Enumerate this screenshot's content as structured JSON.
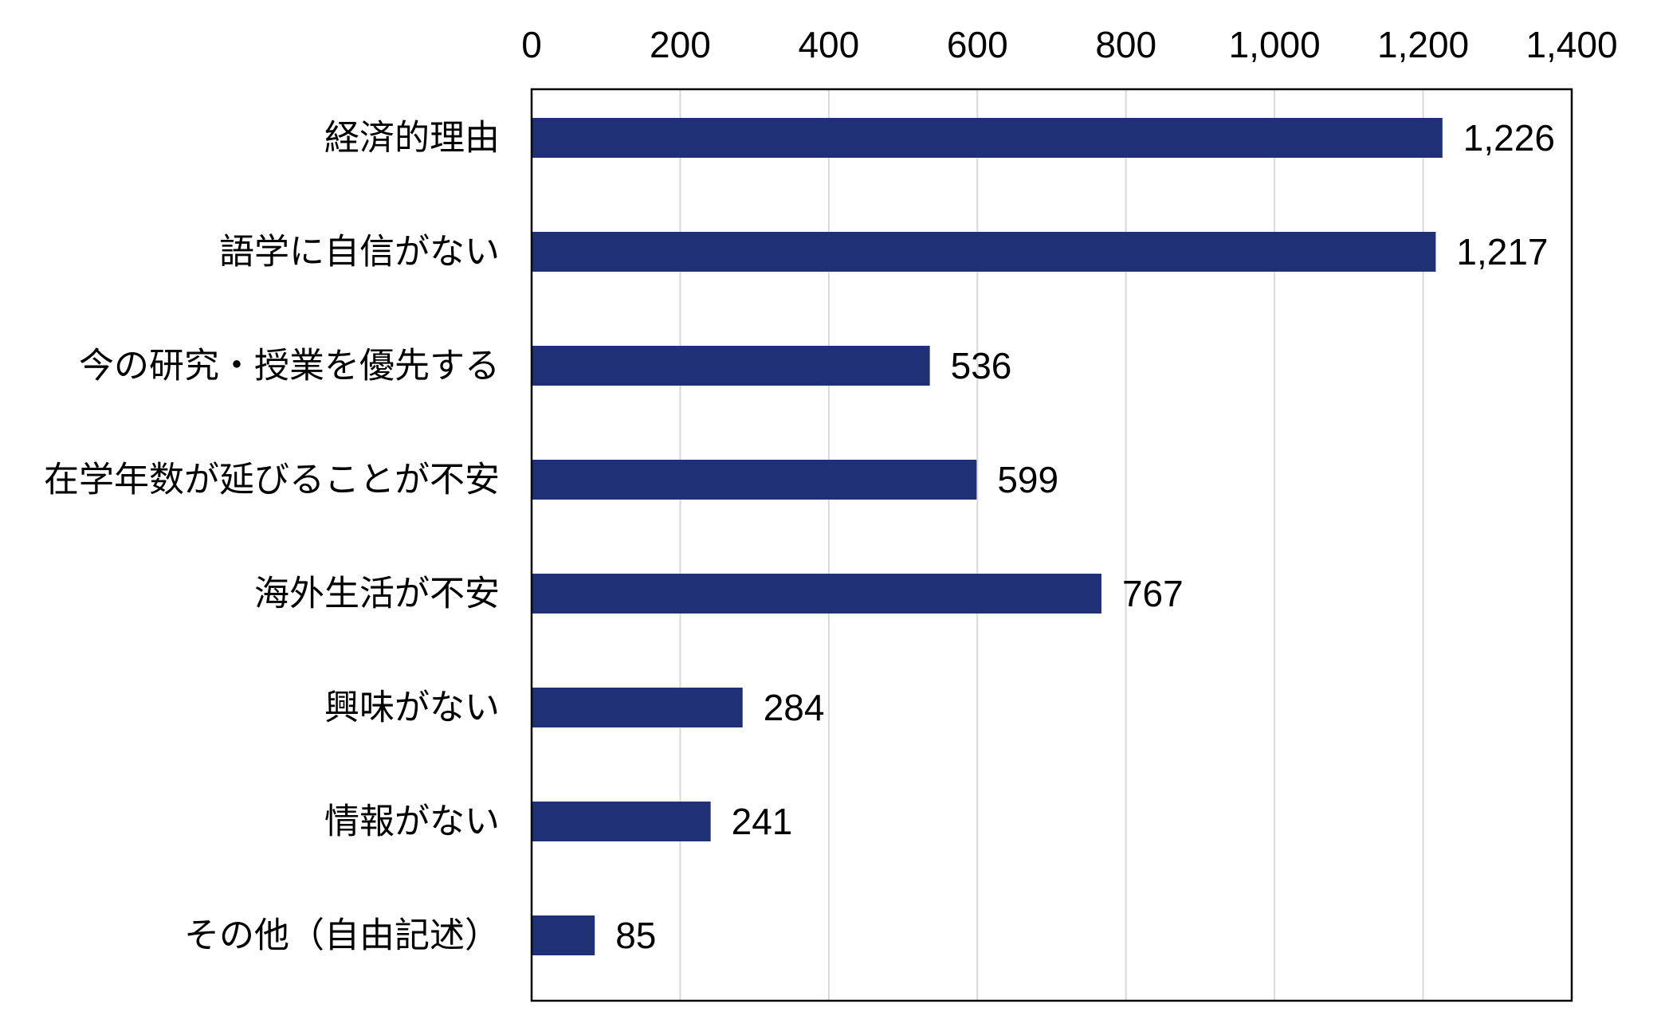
{
  "chart_data": {
    "type": "bar",
    "orientation": "horizontal",
    "categories": [
      "経済的理由",
      "語学に自信がない",
      "今の研究・授業を優先する",
      "在学年数が延びることが不安",
      "海外生活が不安",
      "興味がない",
      "情報がない",
      "その他（自由記述）"
    ],
    "values": [
      1226,
      1217,
      536,
      599,
      767,
      284,
      241,
      85
    ],
    "value_labels": [
      "1,226",
      "1,217",
      "536",
      "599",
      "767",
      "284",
      "241",
      "85"
    ],
    "xlim": [
      0,
      1400
    ],
    "x_ticks": [
      0,
      200,
      400,
      600,
      800,
      1000,
      1200,
      1400
    ],
    "x_tick_labels": [
      "0",
      "200",
      "400",
      "600",
      "800",
      "1,000",
      "1,200",
      "1,400"
    ],
    "x_axis_position": "top",
    "grid": true,
    "legend": false,
    "colors": {
      "bar": "#1F3174",
      "grid": "#d9d9d9",
      "frame": "#000000"
    }
  }
}
